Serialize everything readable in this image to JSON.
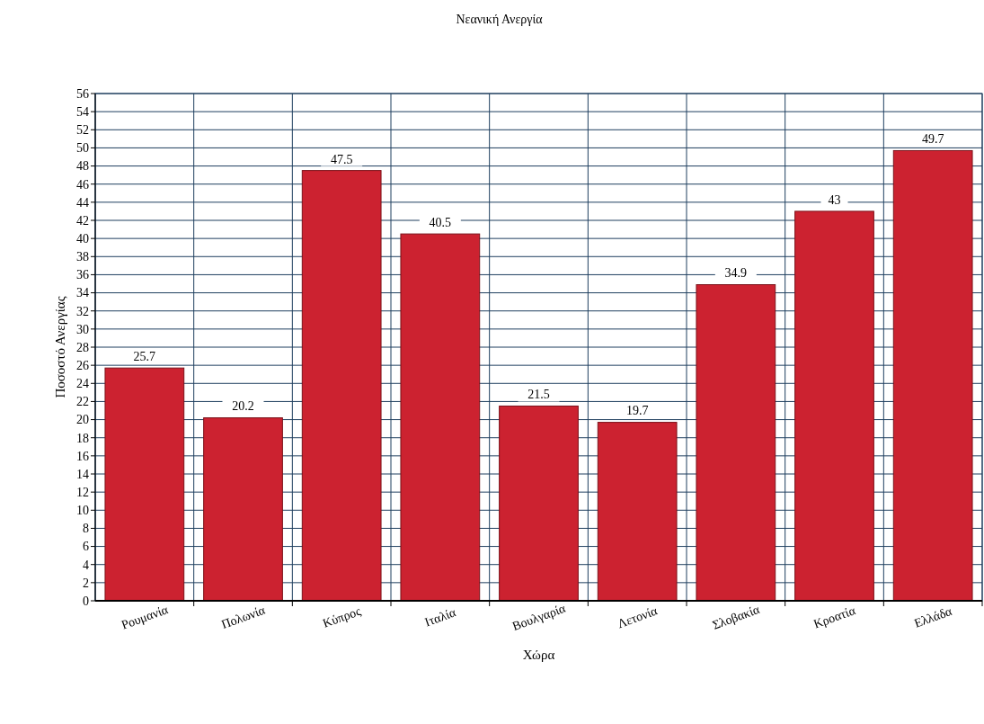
{
  "chart_data": {
    "type": "bar",
    "title": "Νεανική Ανεργία",
    "xlabel": "Χώρα",
    "ylabel": "Ποσοστό Ανεργίας",
    "categories": [
      "Ρουμανία",
      "Πολωνία",
      "Κύπρος",
      "Ιταλία",
      "Βουλγαρία",
      "Λετονία",
      "Σλοβακία",
      "Κροατία",
      "Ελλάδα"
    ],
    "values": [
      25.7,
      20.2,
      47.5,
      40.5,
      21.5,
      19.7,
      34.9,
      43,
      49.7
    ],
    "color": "#cc2230",
    "ylim": [
      0,
      56
    ],
    "yticks": [
      0,
      2,
      4,
      6,
      8,
      10,
      12,
      14,
      16,
      18,
      20,
      22,
      24,
      26,
      28,
      30,
      32,
      34,
      36,
      38,
      40,
      42,
      44,
      46,
      48,
      50,
      52,
      54,
      56
    ],
    "grid": true,
    "data_labels": true
  }
}
